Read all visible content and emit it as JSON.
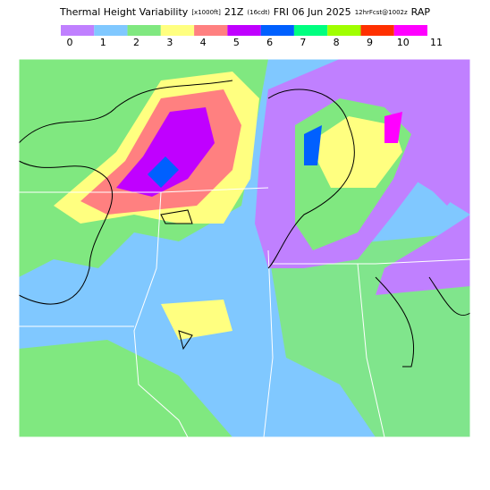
{
  "header": {
    "parts": [
      {
        "text": "Thermal Height Variability",
        "size": "big"
      },
      {
        "text": "[x1000ft]",
        "size": "small"
      },
      {
        "text": "21Z",
        "size": "big"
      },
      {
        "text": "(16cdt)",
        "size": "small"
      },
      {
        "text": "FRI 06 Jun 2025",
        "size": "big"
      },
      {
        "text": "12hrFcst@1002z",
        "size": "small"
      },
      {
        "text": "RAP",
        "size": "big"
      }
    ]
  },
  "legend": {
    "labels": [
      "0",
      "1",
      "2",
      "3",
      "4",
      "5",
      "6",
      "7",
      "8",
      "9",
      "10",
      "11"
    ],
    "colors": [
      "#c080ff",
      "#80c8ff",
      "#80e880",
      "#ffff80",
      "#ff8080",
      "#c000ff",
      "#0060ff",
      "#00ff80",
      "#a0ff00",
      "#ff3000",
      "#ff00ff"
    ]
  }
}
